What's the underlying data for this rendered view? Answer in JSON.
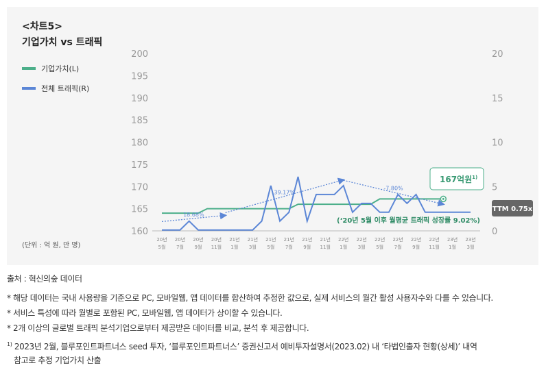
{
  "header": {
    "label": "<차트5>",
    "title": "기업가치 vs 트래픽"
  },
  "unit_note": "(단위 : 억 원, 만 명)",
  "chart_data": {
    "type": "line",
    "title": "기업가치 vs 트래픽",
    "x": [
      "20-05",
      "20-06",
      "20-07",
      "20-08",
      "20-09",
      "20-10",
      "20-11",
      "20-12",
      "21-01",
      "21-02",
      "21-03",
      "21-04",
      "21-05",
      "21-06",
      "21-07",
      "21-08",
      "21-09",
      "21-10",
      "21-11",
      "21-12",
      "22-01",
      "22-02",
      "22-03",
      "22-04",
      "22-05",
      "22-06",
      "22-07",
      "22-08",
      "22-09",
      "22-10",
      "22-11",
      "22-12",
      "23-01",
      "23-02",
      "23-03"
    ],
    "x_tick_labels": [
      [
        "20년",
        "5월"
      ],
      [
        "20년",
        "7월"
      ],
      [
        "20년",
        "9월"
      ],
      [
        "20년",
        "11월"
      ],
      [
        "21년",
        "1월"
      ],
      [
        "21년",
        "3월"
      ],
      [
        "21년",
        "5월"
      ],
      [
        "21년",
        "7월"
      ],
      [
        "21년",
        "9월"
      ],
      [
        "21년",
        "11월"
      ],
      [
        "22년",
        "1월"
      ],
      [
        "22년",
        "3월"
      ],
      [
        "22년",
        "5월"
      ],
      [
        "22년",
        "7월"
      ],
      [
        "22년",
        "9월"
      ],
      [
        "22년",
        "11월"
      ],
      [
        "23년",
        "1월"
      ],
      [
        "23년",
        "3월"
      ]
    ],
    "y_left": {
      "ticks": [
        "200",
        "195",
        "190",
        "185",
        "180",
        "175",
        "170",
        "165",
        "160"
      ],
      "range": [
        160,
        200
      ]
    },
    "y_right": {
      "ticks": [
        "20",
        "15",
        "10",
        "5",
        "0"
      ],
      "range": [
        0,
        20
      ]
    },
    "series": [
      {
        "name": "기업가치(L)",
        "color": "#4caf8a",
        "axis": "left",
        "values": [
          164,
          164,
          164,
          164,
          164,
          165,
          165,
          165,
          165,
          165,
          165,
          165,
          165,
          165,
          165,
          166,
          166,
          166,
          166,
          166,
          166,
          166,
          166,
          166,
          167.2,
          167.2,
          167.2,
          167.2,
          167.2,
          167.2,
          167.2,
          167.2,
          null,
          null,
          null
        ]
      },
      {
        "name": "전체 트래픽(R)",
        "color": "#5b86d6",
        "axis": "right",
        "values": [
          0.1,
          0.1,
          0.1,
          1.1,
          0.1,
          0.1,
          0.1,
          0.1,
          0.1,
          0.1,
          0.1,
          1.1,
          5.1,
          1.1,
          2.1,
          6.1,
          1.1,
          4.1,
          4.1,
          4.1,
          5.1,
          2.1,
          3.1,
          3.1,
          2.1,
          2.1,
          4.1,
          3.1,
          4.1,
          2.1,
          2.1,
          2.1,
          2.1,
          2.1,
          2.1
        ]
      }
    ],
    "trends": [
      {
        "label": "18.68%",
        "from": [
          0,
          1.05
        ],
        "to": [
          7,
          1.75
        ]
      },
      {
        "label": "39.17%",
        "from": [
          7,
          2.05
        ],
        "to": [
          20,
          5.75
        ]
      },
      {
        "label": "-7.80%",
        "from": [
          20,
          5.7
        ],
        "to": [
          31,
          3.0
        ]
      }
    ],
    "callout": {
      "label": "167억원",
      "sup": "1)",
      "index": 31,
      "value": 167.2
    },
    "growth_note": "(‘20년 5월 이후 월평균 트래픽 성장률 9.02%)",
    "ttm_badge": "TTM 0.75x"
  },
  "footer": {
    "source": "출처 : 혁신의숲 데이터",
    "notes": [
      "* 해당 데이터는 국내 사용량을 기준으로 PC, 모바일웹, 앱 데이터를 합산하여 추정한 값으로, 실제 서비스의 월간 활성 사용자수와 다를 수 있습니다.",
      "* 서비스 특성에 따라 월별로 포함된 PC, 모바일웹, 앱 데이터가 상이할 수 있습니다.",
      "* 2개 이상의 글로벌 트래픽 분석기업으로부터 제공받은 데이터를 비교, 분석 후 제공합니다."
    ],
    "footnote_mark": "1)",
    "footnote_line1": "2023년 2월, 블루포인트파트너스 seed 투자, ‘블루포인트파트너스’ 증권신고서 예비투자설명서(2023.02) 내 ‘타법인출자 현황(상세)’ 내역",
    "footnote_line2": "참고로 추정 기업가치 산출"
  }
}
